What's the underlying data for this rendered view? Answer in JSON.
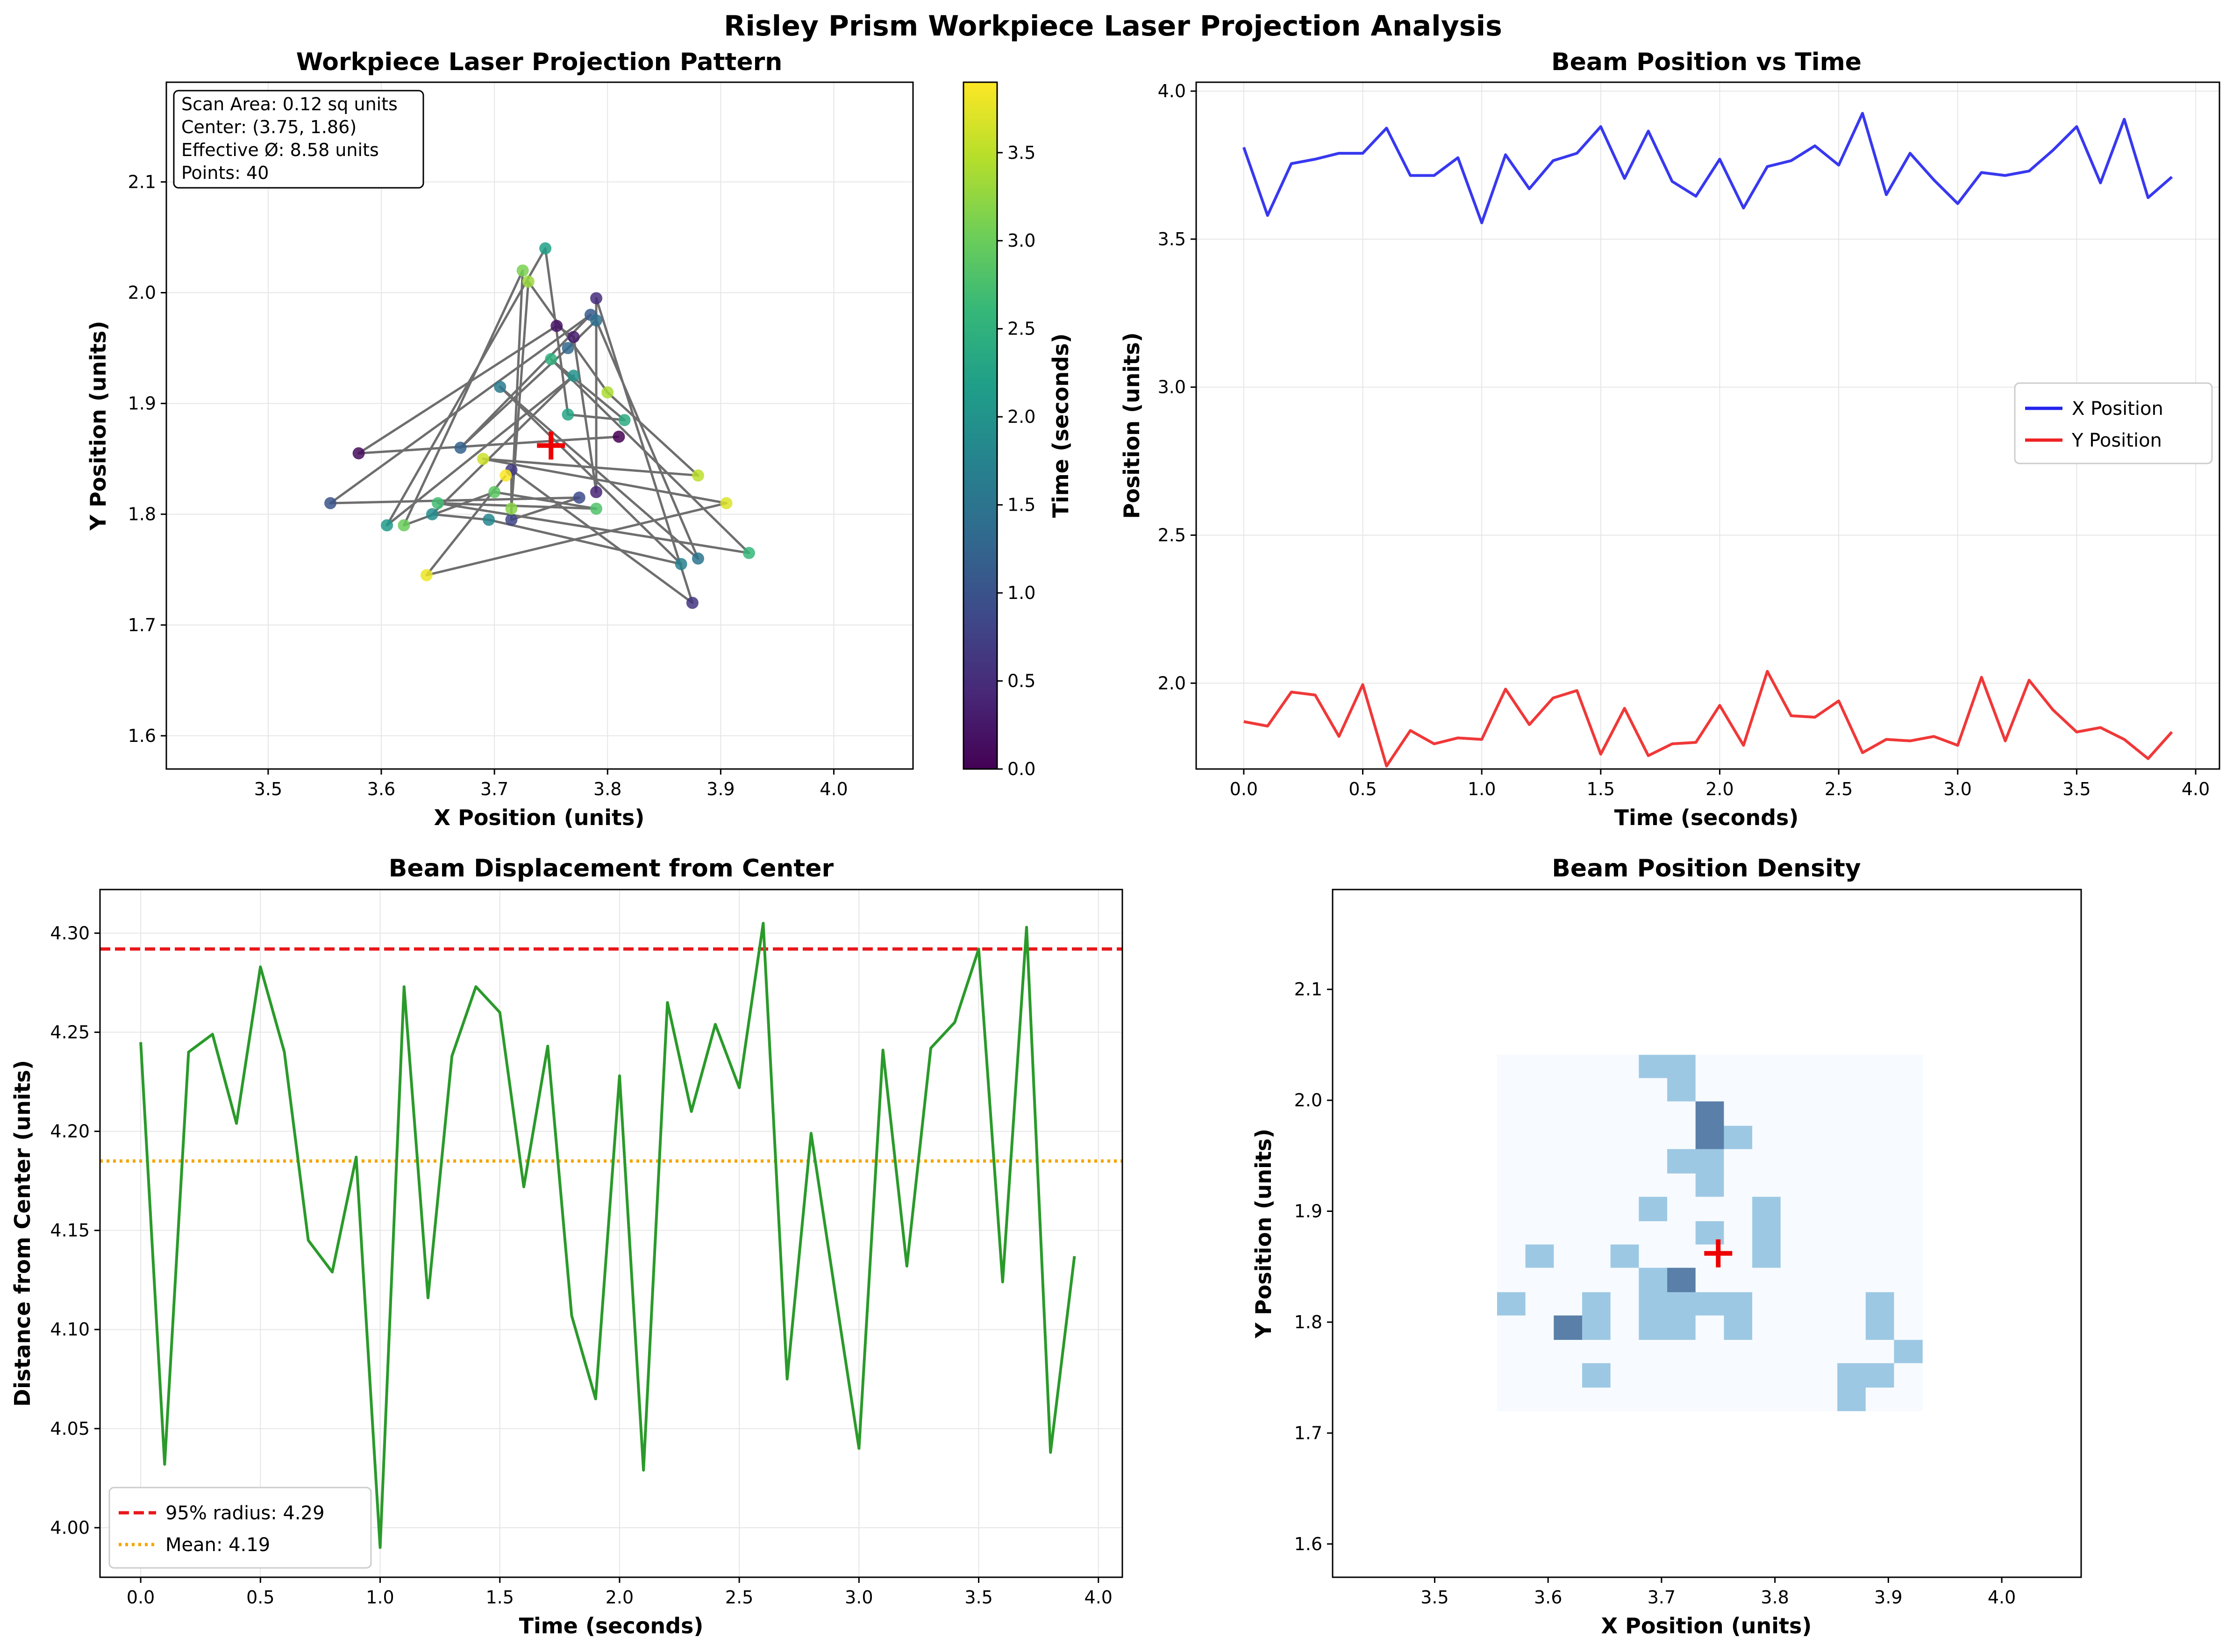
{
  "suptitle": "Risley Prism Workpiece Laser Projection Analysis",
  "colors": {
    "x_line": "#2222ee",
    "y_line": "#ee2222",
    "disp_line": "#2a9a2a",
    "p95_line": "#e8171b",
    "mean_line": "#f5a500",
    "path": "#6e6e6e",
    "center_marker": "#ee0000",
    "grid": "#e6e6e6",
    "viridis": [
      "#440154",
      "#482878",
      "#3e4989",
      "#31688e",
      "#26828e",
      "#1f9e89",
      "#35b779",
      "#6ece58",
      "#b5de2b",
      "#fde725"
    ],
    "blues": [
      "#f7fbff",
      "#9dc8e4",
      "#5a7fa8"
    ]
  },
  "chart_data": [
    {
      "type": "scatter",
      "title": "Workpiece Laser Projection Pattern",
      "xlabel": "X Position (units)",
      "ylabel": "Y Position (units)",
      "xlim": [
        3.41,
        4.07
      ],
      "ylim": [
        1.57,
        2.19
      ],
      "xticks": [
        3.5,
        3.6,
        3.7,
        3.8,
        3.9,
        4.0
      ],
      "yticks": [
        1.6,
        1.7,
        1.8,
        1.9,
        2.0,
        2.1
      ],
      "grid": true,
      "colorbar": {
        "label": "Time (seconds)",
        "range": [
          0,
          3.9
        ],
        "ticks": [
          0.0,
          0.5,
          1.0,
          1.5,
          2.0,
          2.5,
          3.0,
          3.5
        ],
        "colormap": "viridis"
      },
      "info_box": {
        "lines": [
          "Scan Area: 0.12 sq units",
          "Center: (3.75, 1.86)",
          "Effective Ø: 8.58 units",
          "Points: 40"
        ]
      },
      "center_marker": {
        "x": 3.75,
        "y": 1.862
      }
    },
    {
      "type": "line",
      "title": "Beam Position vs Time",
      "xlabel": "Time (seconds)",
      "ylabel": "Position (units)",
      "xlim": [
        -0.2,
        4.1
      ],
      "ylim": [
        1.71,
        4.03
      ],
      "xticks": [
        0.0,
        0.5,
        1.0,
        1.5,
        2.0,
        2.5,
        3.0,
        3.5,
        4.0
      ],
      "yticks": [
        2.0,
        2.5,
        3.0,
        3.5,
        4.0
      ],
      "grid": true,
      "legend_position": "center-right",
      "x": [
        0.0,
        0.1,
        0.2,
        0.3,
        0.4,
        0.5,
        0.6,
        0.7,
        0.8,
        0.9,
        1.0,
        1.1,
        1.2,
        1.3,
        1.4,
        1.5,
        1.6,
        1.7,
        1.8,
        1.9,
        2.0,
        2.1,
        2.2,
        2.3,
        2.4,
        2.5,
        2.6,
        2.7,
        2.8,
        2.9,
        3.0,
        3.1,
        3.2,
        3.3,
        3.4,
        3.5,
        3.6,
        3.7,
        3.8,
        3.9
      ],
      "series": [
        {
          "name": "X Position",
          "values": [
            3.81,
            3.58,
            3.755,
            3.77,
            3.79,
            3.79,
            3.875,
            3.715,
            3.715,
            3.775,
            3.555,
            3.785,
            3.67,
            3.765,
            3.79,
            3.88,
            3.705,
            3.865,
            3.695,
            3.645,
            3.77,
            3.605,
            3.745,
            3.765,
            3.815,
            3.75,
            3.925,
            3.65,
            3.79,
            3.7,
            3.62,
            3.725,
            3.715,
            3.73,
            3.8,
            3.88,
            3.69,
            3.905,
            3.64,
            3.71
          ]
        },
        {
          "name": "Y Position",
          "values": [
            1.87,
            1.855,
            1.97,
            1.96,
            1.82,
            1.995,
            1.72,
            1.84,
            1.795,
            1.815,
            1.81,
            1.98,
            1.86,
            1.95,
            1.975,
            1.76,
            1.915,
            1.755,
            1.795,
            1.8,
            1.925,
            1.79,
            2.04,
            1.89,
            1.885,
            1.94,
            1.765,
            1.81,
            1.805,
            1.82,
            1.79,
            2.02,
            1.805,
            2.01,
            1.91,
            1.835,
            1.85,
            1.81,
            1.745,
            1.835
          ]
        }
      ]
    },
    {
      "type": "line",
      "title": "Beam Displacement from Center",
      "xlabel": "Time (seconds)",
      "ylabel": "Distance from Center (units)",
      "xlim": [
        -0.17,
        4.1
      ],
      "ylim": [
        3.975,
        4.322
      ],
      "xticks": [
        0.0,
        0.5,
        1.0,
        1.5,
        2.0,
        2.5,
        3.0,
        3.5,
        4.0
      ],
      "yticks": [
        4.0,
        4.05,
        4.1,
        4.15,
        4.2,
        4.25,
        4.3
      ],
      "grid": true,
      "legend_position": "bottom-left",
      "x": [
        0.0,
        0.1,
        0.2,
        0.3,
        0.4,
        0.5,
        0.6,
        0.7,
        0.8,
        0.9,
        1.0,
        1.1,
        1.2,
        1.3,
        1.4,
        1.5,
        1.6,
        1.7,
        1.8,
        1.9,
        2.0,
        2.1,
        2.2,
        2.3,
        2.4,
        2.5,
        2.6,
        2.7,
        2.8,
        2.9,
        3.0,
        3.1,
        3.2,
        3.3,
        3.4,
        3.5,
        3.6,
        3.7,
        3.8,
        3.9
      ],
      "values": [
        4.245,
        4.032,
        4.24,
        4.249,
        4.204,
        4.283,
        4.24,
        4.145,
        4.129,
        4.187,
        3.99,
        4.273,
        4.116,
        4.238,
        4.273,
        4.26,
        4.172,
        4.243,
        4.107,
        4.065,
        4.228,
        4.029,
        4.265,
        4.21,
        4.254,
        4.222,
        4.305,
        4.075,
        4.199,
        4.119,
        4.04,
        4.241,
        4.132,
        4.242,
        4.255,
        4.292,
        4.124,
        4.303,
        4.038,
        4.137
      ],
      "reference_lines": [
        {
          "label": "95% radius: 4.29",
          "value": 4.292,
          "style": "dashed"
        },
        {
          "label": "Mean: 4.19",
          "value": 4.185,
          "style": "dotted"
        }
      ]
    },
    {
      "type": "heatmap",
      "title": "Beam Position Density",
      "xlabel": "X Position (units)",
      "ylabel": "Y Position (units)",
      "xlim": [
        3.41,
        4.07
      ],
      "ylim": [
        1.57,
        2.19
      ],
      "xticks": [
        3.5,
        3.6,
        3.7,
        3.8,
        3.9,
        4.0
      ],
      "yticks": [
        1.6,
        1.7,
        1.8,
        1.9,
        2.0,
        2.1
      ],
      "grid": false,
      "x_edges": [
        3.555,
        3.58,
        3.605,
        3.63,
        3.655,
        3.68,
        3.705,
        3.73,
        3.755,
        3.78,
        3.805,
        3.83,
        3.855,
        3.88,
        3.905,
        3.93
      ],
      "y_edges": [
        1.72,
        1.741,
        1.763,
        1.784,
        1.806,
        1.827,
        1.849,
        1.87,
        1.891,
        1.913,
        1.934,
        1.956,
        1.977,
        1.999,
        2.02,
        2.041
      ],
      "counts_row_order": "top to bottom",
      "counts": [
        [
          0,
          0,
          0,
          0,
          0,
          1,
          1,
          0,
          0,
          0,
          0,
          0,
          0,
          0,
          0
        ],
        [
          0,
          0,
          0,
          0,
          0,
          0,
          1,
          0,
          0,
          0,
          0,
          0,
          0,
          0,
          0
        ],
        [
          0,
          0,
          0,
          0,
          0,
          0,
          0,
          2,
          0,
          0,
          0,
          0,
          0,
          0,
          0
        ],
        [
          0,
          0,
          0,
          0,
          0,
          0,
          0,
          2,
          1,
          0,
          0,
          0,
          0,
          0,
          0
        ],
        [
          0,
          0,
          0,
          0,
          0,
          0,
          1,
          1,
          0,
          0,
          0,
          0,
          0,
          0,
          0
        ],
        [
          0,
          0,
          0,
          0,
          0,
          0,
          0,
          1,
          0,
          0,
          0,
          0,
          0,
          0,
          0
        ],
        [
          0,
          0,
          0,
          0,
          0,
          1,
          0,
          0,
          0,
          1,
          0,
          0,
          0,
          0,
          0
        ],
        [
          0,
          0,
          0,
          0,
          0,
          0,
          0,
          1,
          0,
          1,
          0,
          0,
          0,
          0,
          0
        ],
        [
          0,
          1,
          0,
          0,
          1,
          0,
          0,
          0,
          0,
          1,
          0,
          0,
          0,
          0,
          0
        ],
        [
          0,
          0,
          0,
          0,
          0,
          1,
          2,
          0,
          0,
          0,
          0,
          0,
          0,
          0,
          0
        ],
        [
          1,
          0,
          0,
          1,
          0,
          1,
          1,
          1,
          1,
          0,
          0,
          0,
          0,
          1,
          0
        ],
        [
          0,
          0,
          2,
          1,
          0,
          1,
          1,
          0,
          1,
          0,
          0,
          0,
          0,
          1,
          0
        ],
        [
          0,
          0,
          0,
          0,
          0,
          0,
          0,
          0,
          0,
          0,
          0,
          0,
          0,
          0,
          1
        ],
        [
          0,
          0,
          0,
          1,
          0,
          0,
          0,
          0,
          0,
          0,
          0,
          0,
          1,
          1,
          0
        ],
        [
          0,
          0,
          0,
          0,
          0,
          0,
          0,
          0,
          0,
          0,
          0,
          0,
          1,
          0,
          0
        ]
      ],
      "center_marker": {
        "x": 3.75,
        "y": 1.862
      }
    }
  ]
}
